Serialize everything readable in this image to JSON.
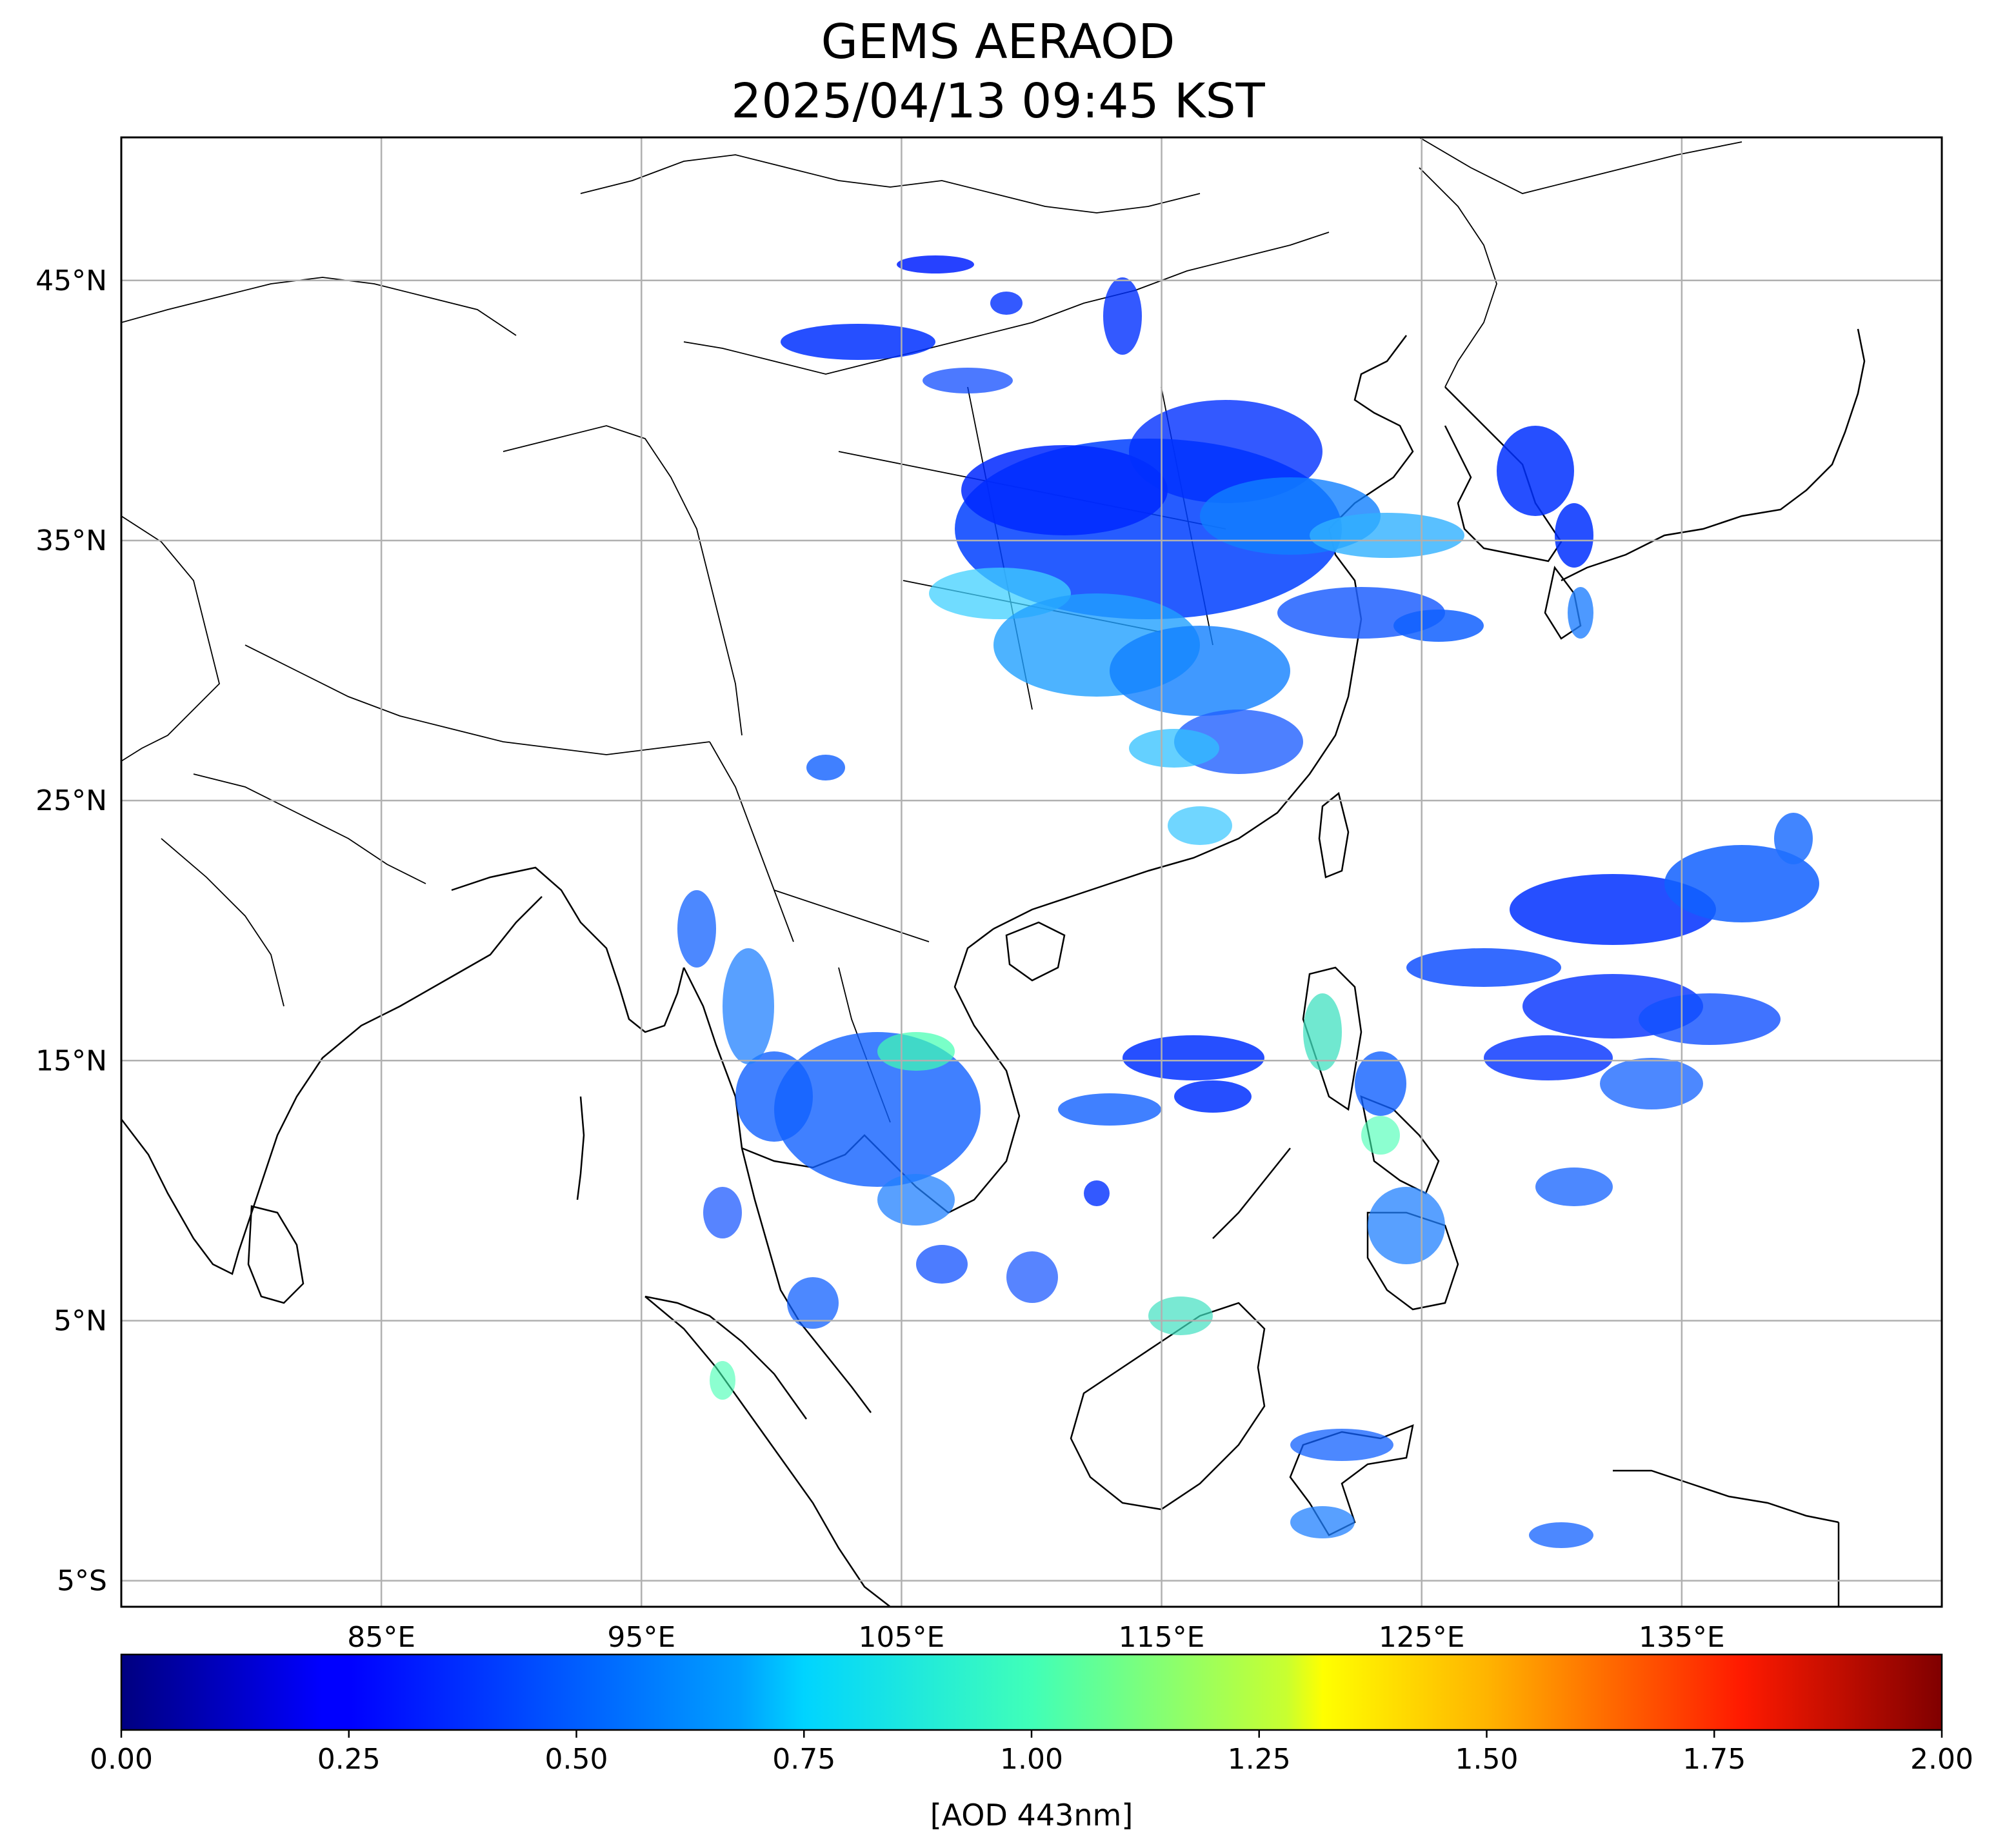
{
  "title": {
    "line1": "GEMS AERAOD",
    "line2": "2025/04/13 09:45 KST"
  },
  "map": {
    "lon_range": [
      75,
      145
    ],
    "lat_range": [
      -6,
      50.5
    ],
    "lon_ticks": [
      {
        "value": 85,
        "label": "85°E"
      },
      {
        "value": 95,
        "label": "95°E"
      },
      {
        "value": 105,
        "label": "105°E"
      },
      {
        "value": 115,
        "label": "115°E"
      },
      {
        "value": 125,
        "label": "125°E"
      },
      {
        "value": 135,
        "label": "135°E"
      }
    ],
    "lat_ticks": [
      {
        "value": 45,
        "label": "45°N"
      },
      {
        "value": 35,
        "label": "35°N"
      },
      {
        "value": 25,
        "label": "25°N"
      },
      {
        "value": 15,
        "label": "15°N"
      },
      {
        "value": 5,
        "label": "5°N"
      },
      {
        "value": -5,
        "label": "5°S"
      }
    ],
    "grid": true,
    "grid_color": "#b0b0b0"
  },
  "colorbar": {
    "colormap": "jet",
    "range": [
      0,
      2
    ],
    "ticks": [
      "0.00",
      "0.25",
      "0.50",
      "0.75",
      "1.00",
      "1.25",
      "1.50",
      "1.75",
      "2.00"
    ],
    "label": "[AOD 443nm]"
  }
}
